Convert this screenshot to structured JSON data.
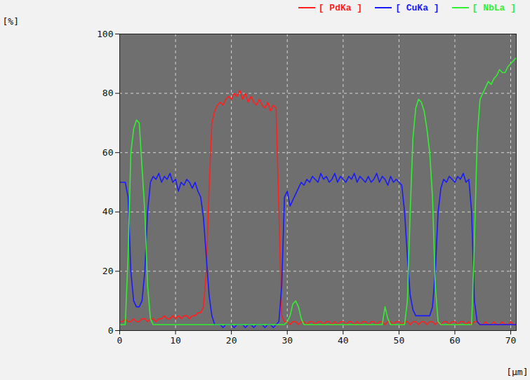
{
  "chart_data": {
    "type": "line",
    "x_label": "[μm]",
    "y_label": "[%]",
    "xlim": [
      0,
      71
    ],
    "xticks": [
      0,
      10,
      20,
      30,
      40,
      50,
      60,
      70
    ],
    "ylim": [
      0,
      100
    ],
    "yticks": [
      0,
      20,
      40,
      60,
      80,
      100
    ],
    "grid": true,
    "legend": "top-right",
    "x": [
      0,
      0.5,
      1,
      1.5,
      2,
      2.5,
      3,
      3.5,
      4,
      4.5,
      5,
      5.5,
      6,
      6.5,
      7,
      7.5,
      8,
      8.5,
      9,
      9.5,
      10,
      10.5,
      11,
      11.5,
      12,
      12.5,
      13,
      13.5,
      14,
      14.5,
      15,
      15.5,
      16,
      16.5,
      17,
      17.5,
      18,
      18.5,
      19,
      19.5,
      20,
      20.5,
      21,
      21.5,
      22,
      22.5,
      23,
      23.5,
      24,
      24.5,
      25,
      25.5,
      26,
      26.5,
      27,
      27.5,
      28,
      28.5,
      29,
      29.5,
      30,
      30.5,
      31,
      31.5,
      32,
      32.5,
      33,
      33.5,
      34,
      34.5,
      35,
      35.5,
      36,
      36.5,
      37,
      37.5,
      38,
      38.5,
      39,
      39.5,
      40,
      40.5,
      41,
      41.5,
      42,
      42.5,
      43,
      43.5,
      44,
      44.5,
      45,
      45.5,
      46,
      46.5,
      47,
      47.5,
      48,
      48.5,
      49,
      49.5,
      50,
      50.5,
      51,
      51.5,
      52,
      52.5,
      53,
      53.5,
      54,
      54.5,
      55,
      55.5,
      56,
      56.5,
      57,
      57.5,
      58,
      58.5,
      59,
      59.5,
      60,
      60.5,
      61,
      61.5,
      62,
      62.5,
      63,
      63.5,
      64,
      64.5,
      65,
      65.5,
      66,
      66.5,
      67,
      67.5,
      68,
      68.5,
      69,
      69.5,
      70,
      70.5,
      71
    ],
    "series": [
      {
        "name": "[ PdKa ]",
        "color": "#ff2020",
        "values": [
          3,
          3,
          4,
          3,
          3,
          4,
          3,
          3,
          4,
          4,
          3,
          4,
          4,
          3,
          4,
          4,
          5,
          4,
          4,
          5,
          4,
          5,
          4,
          5,
          5,
          4,
          5,
          5,
          6,
          6,
          8,
          20,
          48,
          70,
          74,
          76,
          77,
          76,
          78,
          79,
          78,
          80,
          79,
          81,
          78,
          80,
          77,
          79,
          77,
          76,
          78,
          76,
          75,
          77,
          74,
          76,
          75,
          40,
          5,
          3,
          3,
          2,
          3,
          3,
          2,
          3,
          3,
          2,
          3,
          3,
          2,
          3,
          3,
          2,
          3,
          3,
          2,
          3,
          2,
          3,
          3,
          2,
          3,
          3,
          2,
          3,
          2,
          3,
          3,
          2,
          3,
          3,
          2,
          3,
          3,
          2,
          3,
          3,
          2,
          3,
          3,
          2,
          3,
          3,
          2,
          3,
          3,
          2,
          3,
          3,
          2,
          3,
          3,
          2,
          3,
          2,
          3,
          3,
          2,
          3,
          3,
          2,
          3,
          3,
          2,
          3,
          2,
          3,
          3,
          2,
          2,
          3,
          2,
          2,
          3,
          2,
          2,
          3,
          2,
          2,
          3,
          2,
          2
        ]
      },
      {
        "name": "[ CuKa ]",
        "color": "#1a1aff",
        "values": [
          50,
          50,
          50,
          45,
          20,
          10,
          8,
          8,
          10,
          20,
          40,
          50,
          52,
          51,
          53,
          50,
          52,
          51,
          53,
          50,
          51,
          47,
          50,
          49,
          51,
          50,
          48,
          50,
          47,
          45,
          38,
          25,
          12,
          5,
          2,
          2,
          2,
          1,
          2,
          2,
          2,
          1,
          2,
          2,
          2,
          1,
          2,
          2,
          1,
          2,
          2,
          2,
          1,
          2,
          2,
          1,
          2,
          3,
          15,
          45,
          47,
          42,
          44,
          46,
          48,
          50,
          49,
          51,
          50,
          52,
          51,
          50,
          53,
          51,
          52,
          50,
          51,
          53,
          50,
          52,
          51,
          50,
          52,
          51,
          53,
          50,
          52,
          51,
          50,
          52,
          50,
          51,
          53,
          50,
          52,
          51,
          49,
          52,
          50,
          51,
          50,
          49,
          40,
          25,
          12,
          7,
          5,
          5,
          5,
          5,
          5,
          5,
          8,
          20,
          40,
          48,
          51,
          50,
          52,
          51,
          50,
          52,
          51,
          53,
          50,
          51,
          40,
          10,
          3,
          2,
          2,
          2,
          2,
          2,
          2,
          2,
          2,
          2,
          2,
          2,
          2,
          2,
          2
        ]
      },
      {
        "name": "[ NbLa ]",
        "color": "#33ee33",
        "values": [
          2,
          2,
          2,
          25,
          60,
          68,
          71,
          70,
          55,
          40,
          15,
          4,
          2,
          2,
          2,
          2,
          2,
          2,
          2,
          2,
          2,
          2,
          2,
          2,
          2,
          2,
          2,
          2,
          2,
          2,
          2,
          2,
          2,
          2,
          2,
          2,
          2,
          2,
          2,
          2,
          2,
          2,
          2,
          2,
          2,
          2,
          2,
          2,
          2,
          2,
          2,
          2,
          2,
          2,
          2,
          2,
          2,
          2,
          2,
          2,
          3,
          5,
          9,
          10,
          8,
          4,
          2,
          2,
          2,
          2,
          2,
          2,
          2,
          2,
          2,
          2,
          2,
          2,
          2,
          2,
          2,
          2,
          2,
          2,
          2,
          2,
          2,
          2,
          2,
          2,
          2,
          2,
          2,
          2,
          2,
          8,
          4,
          2,
          2,
          2,
          2,
          2,
          2,
          10,
          40,
          65,
          75,
          78,
          77,
          74,
          68,
          60,
          45,
          15,
          3,
          2,
          2,
          2,
          2,
          2,
          2,
          2,
          2,
          2,
          2,
          2,
          2,
          30,
          65,
          78,
          80,
          82,
          84,
          83,
          85,
          86,
          88,
          87,
          87,
          89,
          90,
          91,
          92
        ]
      }
    ]
  }
}
